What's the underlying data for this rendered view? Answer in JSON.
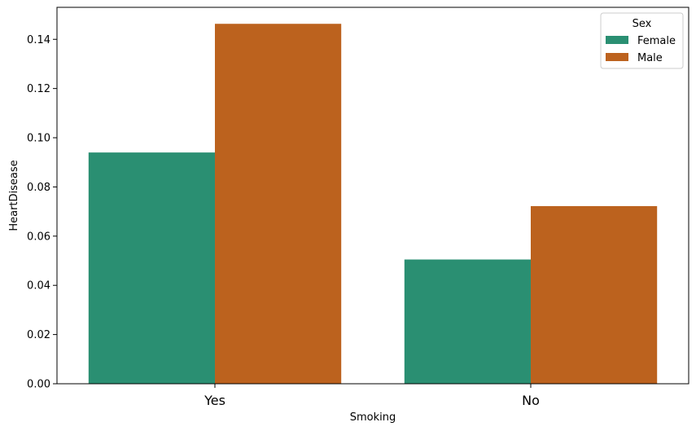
{
  "chart_data": {
    "type": "bar",
    "title": "",
    "xlabel": "Smoking",
    "ylabel": "HeartDisease",
    "categories": [
      "Yes",
      "No"
    ],
    "series": [
      {
        "name": "Female",
        "color": "#2a8f72",
        "values": [
          0.094,
          0.0505
        ]
      },
      {
        "name": "Male",
        "color": "#bc621e",
        "values": [
          0.1463,
          0.0722
        ]
      }
    ],
    "ylim": [
      0,
      0.153
    ],
    "yticks": [
      0.0,
      0.02,
      0.04,
      0.06,
      0.08,
      0.1,
      0.12,
      0.14
    ],
    "ytick_labels": [
      "0.00",
      "0.02",
      "0.04",
      "0.06",
      "0.08",
      "0.10",
      "0.12",
      "0.14"
    ],
    "grid": false,
    "legend": {
      "title": "Sex",
      "placement": "top-right"
    }
  }
}
